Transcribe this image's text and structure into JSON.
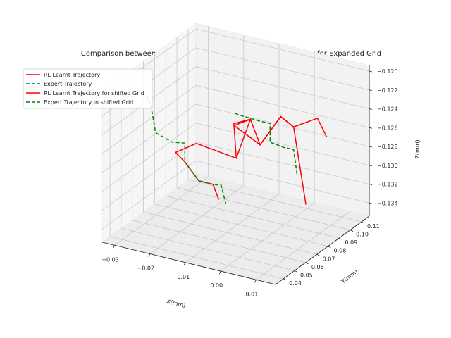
{
  "chart_data": {
    "type": "line",
    "title": "Comparison between Learnt RL Trajectory and Operator Trajectory for Expanded Grid",
    "xlabel": "X(mm)",
    "ylabel": "Y(mm)",
    "zlabel": "Z(mm)",
    "projection": "3d",
    "grid": true,
    "legend_position": "upper-left",
    "x_ticks": [
      "−0.03",
      "−0.02",
      "−0.01",
      "0.00",
      "0.01"
    ],
    "y_ticks": [
      "0.04",
      "0.05",
      "0.06",
      "0.07",
      "0.08",
      "0.09",
      "0.10",
      "0.11"
    ],
    "z_ticks": [
      "−0.134",
      "−0.132",
      "−0.130",
      "−0.128",
      "−0.126",
      "−0.124",
      "−0.122",
      "−0.120"
    ],
    "series": [
      {
        "name": "RL Learnt Trajectory",
        "color": "#ff0000",
        "style": "solid",
        "points": [
          [
            -0.016,
            0.082,
            -0.1335
          ],
          [
            -0.017,
            0.08,
            -0.1318
          ],
          [
            -0.021,
            0.08,
            -0.1318
          ],
          [
            -0.024,
            0.077,
            -0.1298
          ],
          [
            -0.026,
            0.075,
            -0.1288
          ],
          [
            -0.022,
            0.081,
            -0.128
          ],
          [
            -0.012,
            0.085,
            -0.129
          ],
          [
            -0.013,
            0.086,
            -0.1255
          ],
          [
            -0.008,
            0.085,
            -0.1245
          ],
          [
            -0.011,
            0.08,
            -0.125
          ],
          [
            -0.004,
            0.081,
            -0.1265
          ],
          [
            -0.001,
            0.09,
            -0.124
          ],
          [
            0.002,
            0.092,
            -0.125
          ],
          [
            0.01,
            0.088,
            -0.123
          ],
          [
            0.012,
            0.09,
            -0.125
          ]
        ]
      },
      {
        "name": "Expert Trajectory",
        "color": "#008000",
        "style": "dashed",
        "points": [
          [
            -0.014,
            0.082,
            -0.1338
          ],
          [
            -0.015,
            0.081,
            -0.1318
          ],
          [
            -0.017,
            0.08,
            -0.1318
          ],
          [
            -0.021,
            0.08,
            -0.1318
          ],
          [
            -0.024,
            0.077,
            -0.1298
          ],
          [
            -0.024,
            0.077,
            -0.1278
          ],
          [
            -0.027,
            0.075,
            -0.1278
          ],
          [
            -0.031,
            0.073,
            -0.127
          ],
          [
            -0.032,
            0.072,
            -0.1242
          ],
          [
            -0.033,
            0.071,
            -0.123
          ]
        ]
      },
      {
        "name": "RL Learnt Trajectory for shifted Grid",
        "color": "#ff0000",
        "style": "solid",
        "points": [
          [
            -0.012,
            0.085,
            -0.129
          ],
          [
            -0.008,
            0.085,
            -0.1245
          ],
          [
            -0.004,
            0.081,
            -0.1265
          ],
          [
            -0.001,
            0.09,
            -0.124
          ],
          [
            0.002,
            0.092,
            -0.125
          ],
          [
            0.008,
            0.084,
            -0.132
          ]
        ]
      },
      {
        "name": "Expert Trajectory in shifted Grid",
        "color": "#008000",
        "style": "dashed",
        "points": [
          [
            -0.013,
            0.087,
            -0.1245
          ],
          [
            -0.01,
            0.086,
            -0.1245
          ],
          [
            -0.006,
            0.088,
            -0.1248
          ],
          [
            -0.004,
            0.09,
            -0.125
          ],
          [
            -0.004,
            0.09,
            -0.127
          ],
          [
            0.0,
            0.09,
            -0.1272
          ],
          [
            0.002,
            0.092,
            -0.1274
          ],
          [
            0.003,
            0.092,
            -0.13
          ]
        ]
      }
    ]
  }
}
